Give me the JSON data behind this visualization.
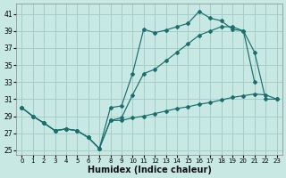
{
  "xlabel": "Humidex (Indice chaleur)",
  "bg_color": "#c8e8e4",
  "grid_color": "#a8ccc8",
  "line_color": "#1a6e6e",
  "xlim": [
    -0.5,
    23.5
  ],
  "ylim": [
    24.5,
    42.2
  ],
  "xticks": [
    0,
    1,
    2,
    3,
    4,
    5,
    6,
    7,
    8,
    9,
    10,
    11,
    12,
    13,
    14,
    15,
    16,
    17,
    18,
    19,
    20,
    21,
    22,
    23
  ],
  "yticks": [
    25,
    27,
    29,
    31,
    33,
    35,
    37,
    39,
    41
  ],
  "line1_x": [
    0,
    1,
    2,
    3,
    4,
    5,
    6,
    7,
    8,
    9,
    10,
    11,
    12,
    13,
    14,
    15,
    16,
    17,
    18,
    19,
    20,
    21
  ],
  "line1_y": [
    30.0,
    29.0,
    28.2,
    27.3,
    27.5,
    27.3,
    26.5,
    25.2,
    30.0,
    30.2,
    34.0,
    39.2,
    38.8,
    39.1,
    39.5,
    39.9,
    41.3,
    40.5,
    40.2,
    39.2,
    39.0,
    33.0
  ],
  "line2_x": [
    0,
    1,
    2,
    3,
    4,
    5,
    6,
    7,
    8,
    9,
    10,
    11,
    12,
    13,
    14,
    15,
    16,
    17,
    18,
    19,
    20,
    21,
    22,
    23
  ],
  "line2_y": [
    30.0,
    29.0,
    28.2,
    27.3,
    27.5,
    27.3,
    26.5,
    25.2,
    28.5,
    28.8,
    31.5,
    34.0,
    34.5,
    35.5,
    36.5,
    37.5,
    38.5,
    39.0,
    39.5,
    39.5,
    39.0,
    36.5,
    31.0,
    31.0
  ],
  "line3_x": [
    0,
    1,
    2,
    3,
    4,
    5,
    6,
    7,
    8,
    9,
    10,
    11,
    12,
    13,
    14,
    15,
    16,
    17,
    18,
    19,
    20,
    21,
    22,
    23
  ],
  "line3_y": [
    30.0,
    29.0,
    28.2,
    27.3,
    27.5,
    27.3,
    26.5,
    25.2,
    28.5,
    28.5,
    28.8,
    29.0,
    29.3,
    29.6,
    29.9,
    30.1,
    30.4,
    30.6,
    30.9,
    31.2,
    31.4,
    31.6,
    31.5,
    31.0
  ]
}
